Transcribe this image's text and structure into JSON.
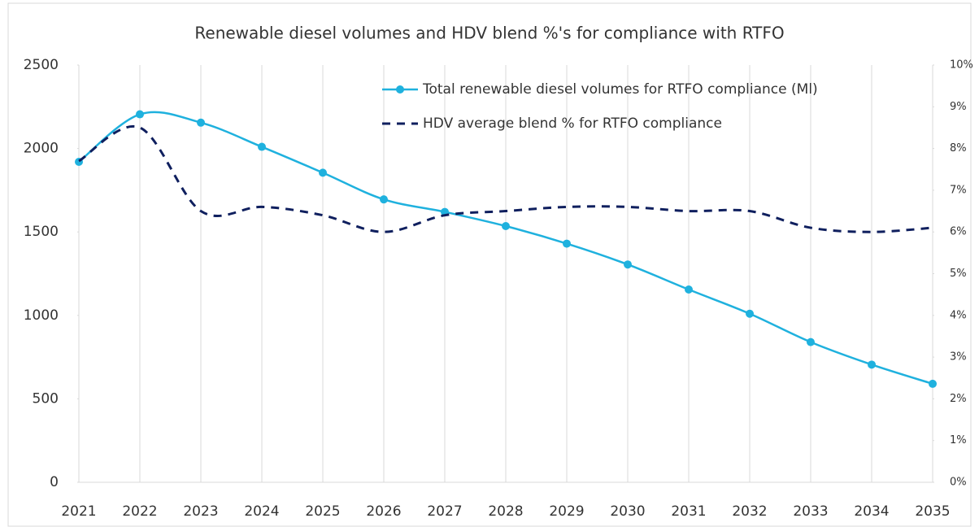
{
  "chart_data": {
    "type": "line",
    "title": "Renewable diesel volumes and HDV blend %'s for compliance with RTFO",
    "categories": [
      "2021",
      "2022",
      "2023",
      "2024",
      "2025",
      "2026",
      "2027",
      "2028",
      "2029",
      "2030",
      "2031",
      "2032",
      "2033",
      "2034",
      "2035"
    ],
    "series": [
      {
        "name": "Total renewable diesel volumes for RTFO compliance (Ml)",
        "color": "#1fb1de",
        "values": [
          1920,
          2205,
          2155,
          2010,
          1855,
          1695,
          1620,
          1535,
          1430,
          1305,
          1155,
          1010,
          840,
          705,
          590
        ]
      },
      {
        "name": "HDV average blend % for RTFO compliance",
        "color": "#0f1f5e",
        "axis": "y2",
        "dashed": true,
        "values": [
          7.7,
          8.5,
          6.5,
          6.6,
          6.4,
          6.0,
          6.4,
          6.5,
          6.6,
          6.6,
          6.5,
          6.5,
          6.1,
          6.0,
          6.1
        ]
      }
    ],
    "ylim": [
      0,
      2500
    ],
    "yticks": [
      0,
      500,
      1000,
      1500,
      2000,
      2500
    ],
    "y2lim": [
      0,
      10
    ],
    "y2ticks": [
      {
        "value": 0,
        "label": "0%"
      },
      {
        "value": 1,
        "label": "1%"
      },
      {
        "value": 2,
        "label": "2%"
      },
      {
        "value": 3,
        "label": "3%"
      },
      {
        "value": 4,
        "label": "4%"
      },
      {
        "value": 5,
        "label": "5%"
      },
      {
        "value": 6,
        "label": "6%"
      },
      {
        "value": 7,
        "label": "7%"
      },
      {
        "value": 8,
        "label": "8%"
      },
      {
        "value": 9,
        "label": "9%"
      },
      {
        "value": 10,
        "label": "10%"
      }
    ],
    "grid": true,
    "legend": "top-right"
  }
}
